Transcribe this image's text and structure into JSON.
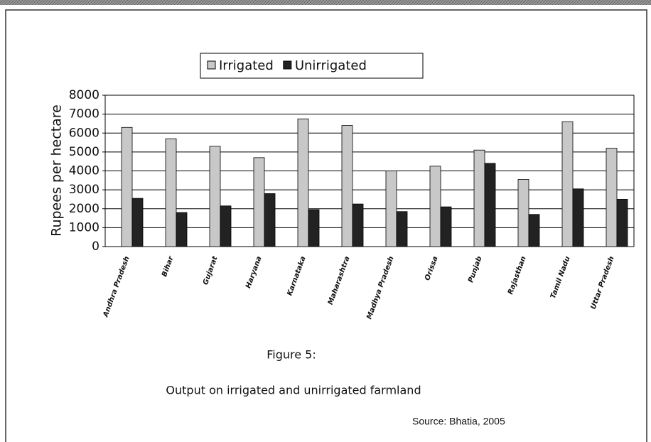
{
  "chart_data": {
    "type": "bar",
    "legend": "top",
    "ylabel": "Rupees per hectare",
    "categories": [
      "Andhra Pradesh",
      "Bihar",
      "Gujarat",
      "Haryana",
      "Karnataka",
      "Maharashtra",
      "Madhya Pradesh",
      "Orissa",
      "Punjab",
      "Rajasthan",
      "Tamil Nadu",
      "Uttar Pradesh"
    ],
    "series": [
      {
        "name": "Irrigated",
        "color": "#c8c8c8",
        "values": [
          6300,
          5700,
          5300,
          4700,
          6750,
          6400,
          4000,
          4250,
          5100,
          3550,
          6600,
          5200
        ]
      },
      {
        "name": "Unirrigated",
        "color": "#222222",
        "values": [
          2550,
          1800,
          2150,
          2800,
          1950,
          2250,
          1850,
          2100,
          4400,
          1700,
          3050,
          2500
        ]
      }
    ],
    "ylim": [
      0,
      8000
    ],
    "yticks": [
      0,
      1000,
      2000,
      3000,
      4000,
      5000,
      6000,
      7000,
      8000
    ],
    "grid": true,
    "caption": "Figure 5:",
    "subcaption": "Output on irrigated and unirrigated farmland",
    "source": "Source:  Bhatia, 2005"
  }
}
